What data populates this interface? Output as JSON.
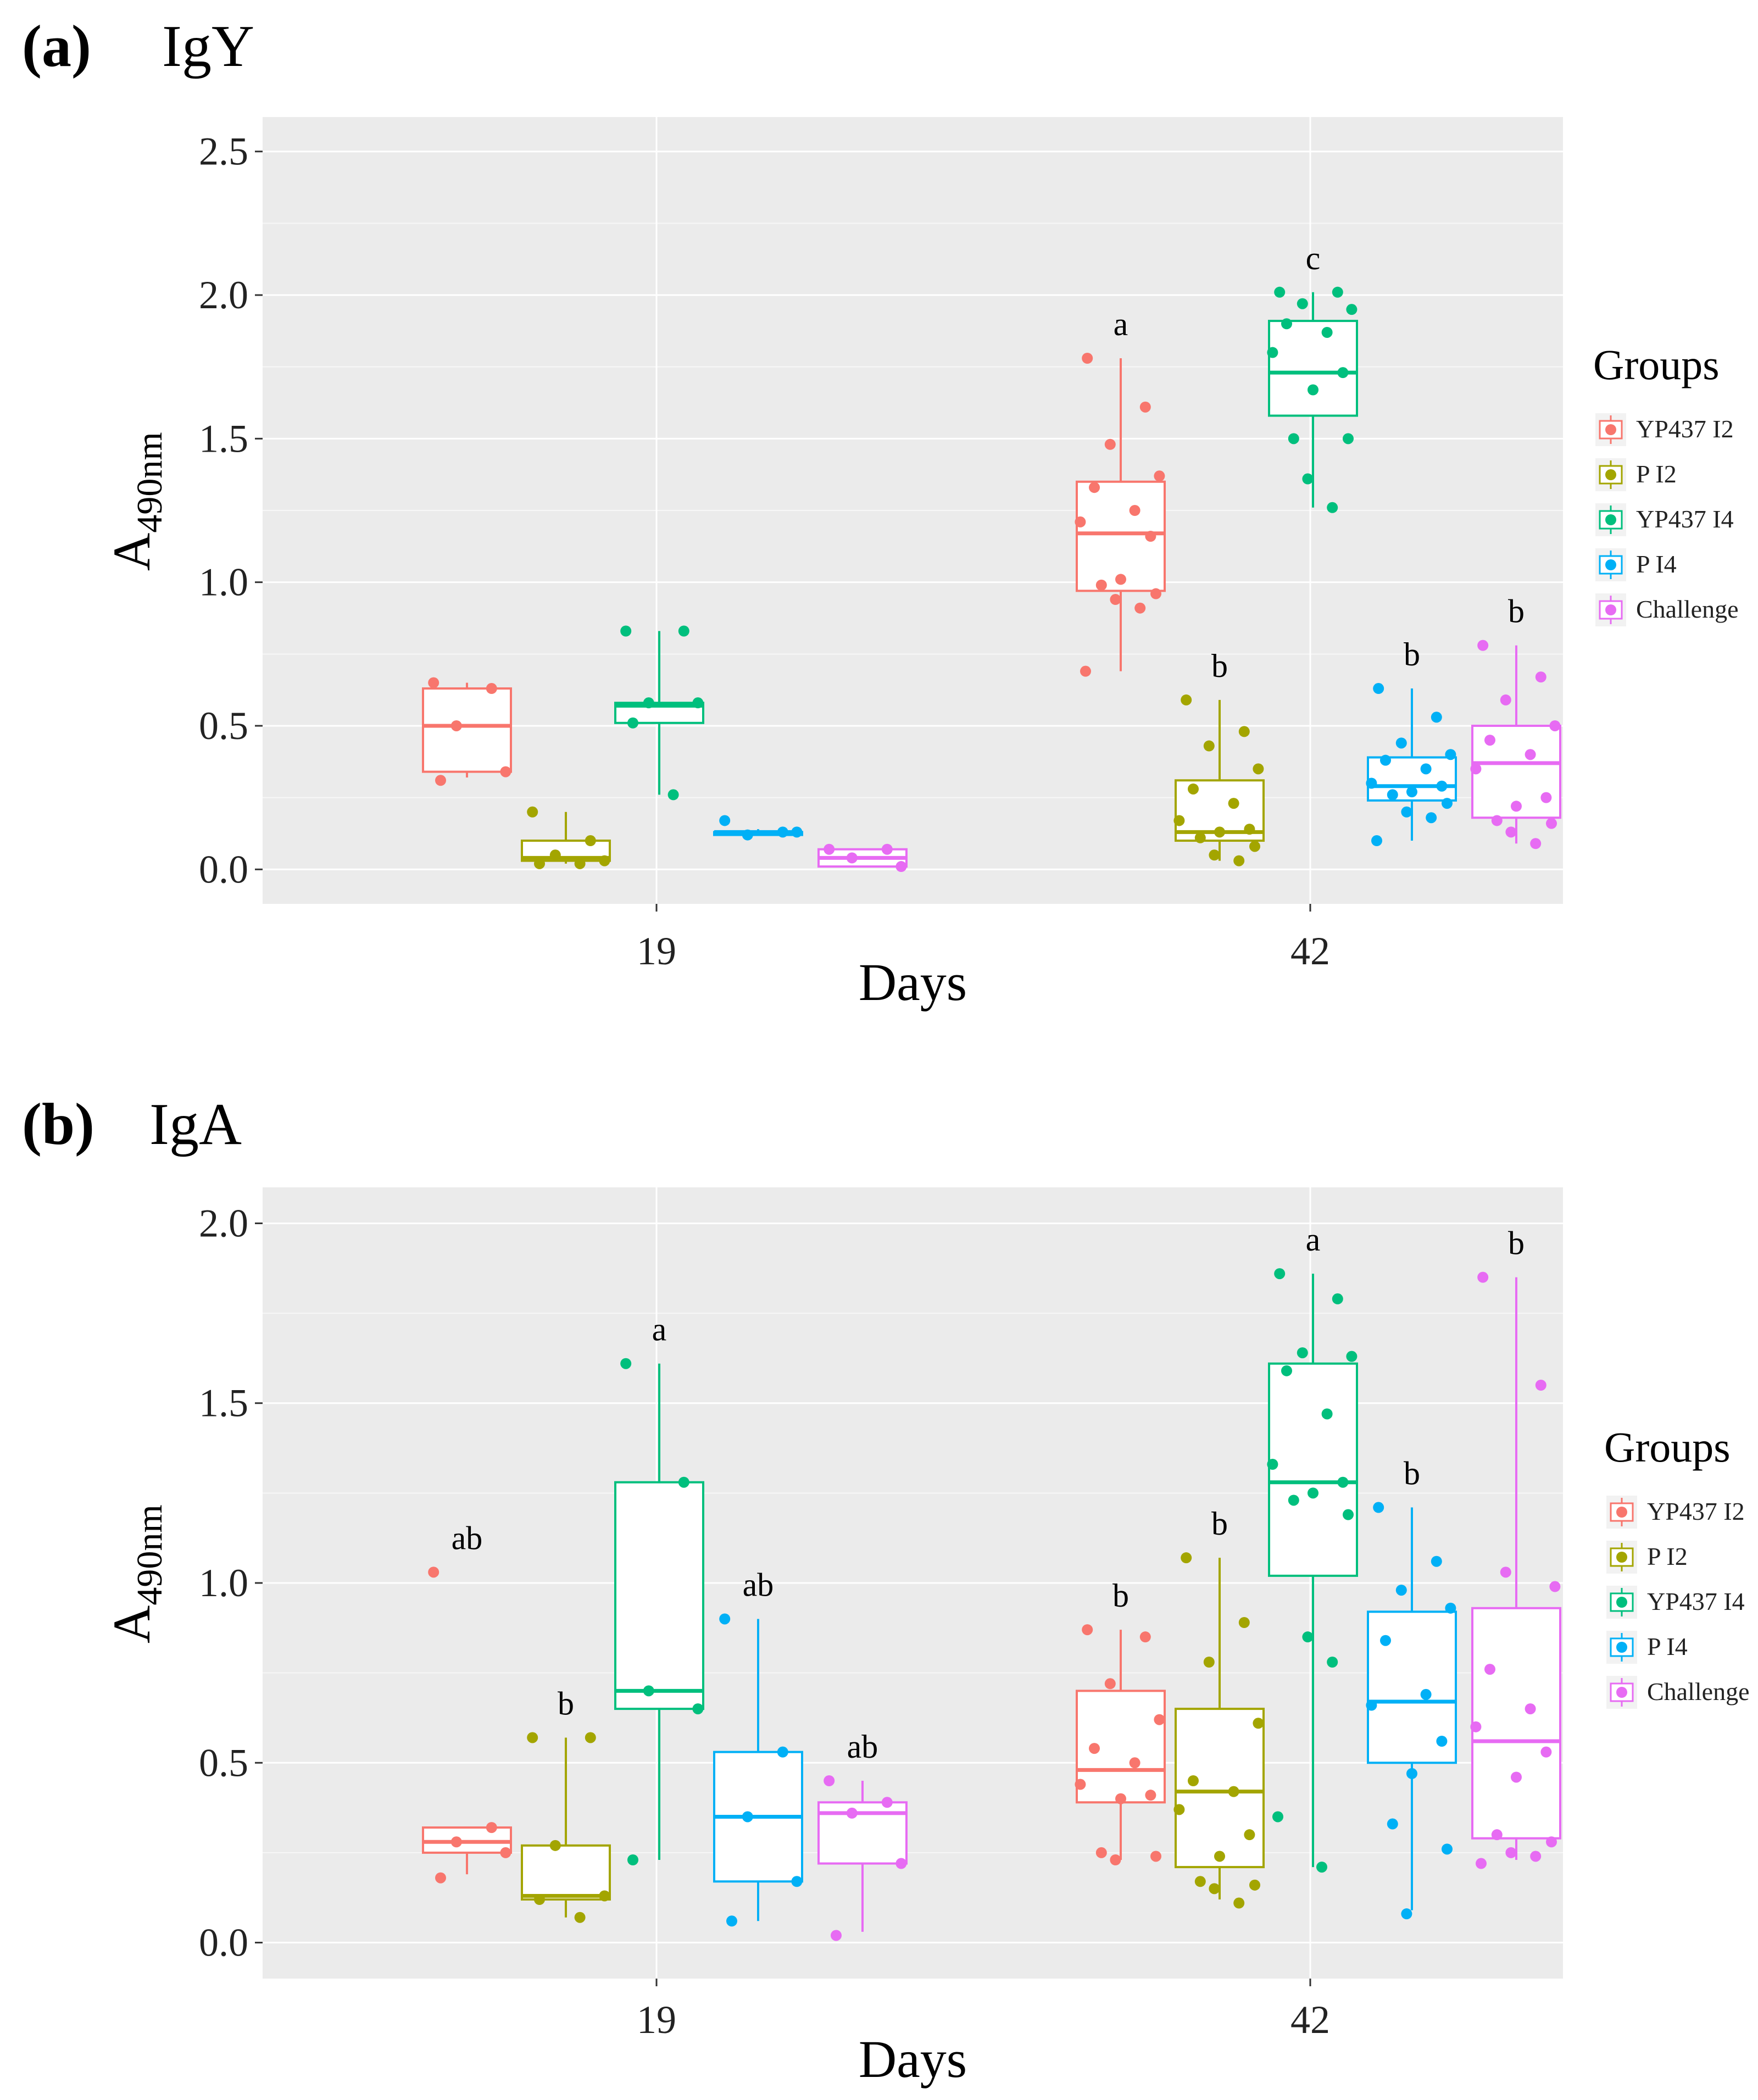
{
  "chart_data": [
    {
      "type": "boxplot",
      "panel_letter": "(a)",
      "title": "IgY",
      "xlabel": "Days",
      "ylabel_main": "A",
      "ylabel_sub": "490nm",
      "ylim": [
        -0.12,
        2.62
      ],
      "yticks": [
        "0.0",
        "0.5",
        "1.0",
        "1.5",
        "2.0",
        "2.5"
      ],
      "categories": [
        "19",
        "42"
      ],
      "legend_title": "Groups",
      "legend_position": "right",
      "groups": [
        {
          "name": "YP437 I2",
          "color": "#F8766D"
        },
        {
          "name": "P I2",
          "color": "#A3A500"
        },
        {
          "name": "YP437 I4",
          "color": "#00BF7D"
        },
        {
          "name": "P I4",
          "color": "#00B0F6"
        },
        {
          "name": "Challenge",
          "color": "#E76BF3"
        }
      ],
      "boxes": [
        {
          "day": "19",
          "group": 0,
          "min": 0.32,
          "q1": 0.34,
          "median": 0.5,
          "q3": 0.63,
          "max": 0.65,
          "letter": "",
          "points": [
            0.65,
            0.63,
            0.5,
            0.34,
            0.31
          ]
        },
        {
          "day": "19",
          "group": 1,
          "min": 0.02,
          "q1": 0.03,
          "median": 0.04,
          "q3": 0.1,
          "max": 0.2,
          "letter": "",
          "points": [
            0.2,
            0.1,
            0.05,
            0.03,
            0.02,
            0.02
          ]
        },
        {
          "day": "19",
          "group": 2,
          "min": 0.26,
          "q1": 0.51,
          "median": 0.57,
          "q3": 0.58,
          "max": 0.83,
          "letter": "",
          "points": [
            0.83,
            0.83,
            0.58,
            0.58,
            0.51,
            0.26
          ]
        },
        {
          "day": "19",
          "group": 3,
          "min": 0.12,
          "q1": 0.12,
          "median": 0.13,
          "q3": 0.13,
          "max": 0.14,
          "letter": "",
          "points": [
            0.17,
            0.13,
            0.12,
            0.13
          ]
        },
        {
          "day": "19",
          "group": 4,
          "min": 0.01,
          "q1": 0.01,
          "median": 0.04,
          "q3": 0.07,
          "max": 0.07,
          "letter": "",
          "points": [
            0.07,
            0.07,
            0.04,
            0.01
          ]
        },
        {
          "day": "42",
          "group": 0,
          "min": 0.69,
          "q1": 0.97,
          "median": 1.17,
          "q3": 1.35,
          "max": 1.78,
          "letter": "a",
          "points": [
            1.78,
            1.61,
            1.48,
            1.37,
            1.33,
            1.25,
            1.21,
            1.16,
            1.01,
            0.99,
            0.96,
            0.94,
            0.91,
            0.69
          ]
        },
        {
          "day": "42",
          "group": 1,
          "min": 0.03,
          "q1": 0.1,
          "median": 0.13,
          "q3": 0.31,
          "max": 0.59,
          "letter": "b",
          "points": [
            0.59,
            0.48,
            0.43,
            0.35,
            0.28,
            0.23,
            0.17,
            0.14,
            0.13,
            0.11,
            0.08,
            0.05,
            0.03
          ]
        },
        {
          "day": "42",
          "group": 2,
          "min": 1.26,
          "q1": 1.58,
          "median": 1.73,
          "q3": 1.91,
          "max": 2.01,
          "letter": "c",
          "points": [
            2.01,
            2.01,
            1.97,
            1.95,
            1.9,
            1.87,
            1.8,
            1.73,
            1.67,
            1.5,
            1.5,
            1.36,
            1.26
          ]
        },
        {
          "day": "42",
          "group": 3,
          "min": 0.1,
          "q1": 0.24,
          "median": 0.29,
          "q3": 0.39,
          "max": 0.63,
          "letter": "b",
          "points": [
            0.63,
            0.53,
            0.44,
            0.4,
            0.38,
            0.35,
            0.3,
            0.29,
            0.27,
            0.26,
            0.23,
            0.2,
            0.18,
            0.1
          ]
        },
        {
          "day": "42",
          "group": 4,
          "min": 0.09,
          "q1": 0.18,
          "median": 0.37,
          "q3": 0.5,
          "max": 0.78,
          "letter": "b",
          "points": [
            0.78,
            0.67,
            0.59,
            0.5,
            0.45,
            0.4,
            0.35,
            0.25,
            0.22,
            0.17,
            0.16,
            0.13,
            0.09
          ]
        }
      ]
    },
    {
      "type": "boxplot",
      "panel_letter": "(b)",
      "title": "IgA",
      "xlabel": "Days",
      "ylabel_main": "A",
      "ylabel_sub": "490nm",
      "ylim": [
        -0.1,
        2.1
      ],
      "yticks": [
        "0.0",
        "0.5",
        "1.0",
        "1.5",
        "2.0"
      ],
      "categories": [
        "19",
        "42"
      ],
      "legend_title": "Groups",
      "legend_position": "right",
      "groups": [
        {
          "name": "YP437 I2",
          "color": "#F8766D"
        },
        {
          "name": "P I2",
          "color": "#A3A500"
        },
        {
          "name": "YP437 I4",
          "color": "#00BF7D"
        },
        {
          "name": "P I4",
          "color": "#00B0F6"
        },
        {
          "name": "Challenge",
          "color": "#E76BF3"
        }
      ],
      "boxes": [
        {
          "day": "19",
          "group": 0,
          "min": 0.19,
          "q1": 0.25,
          "median": 0.28,
          "q3": 0.32,
          "max": 0.32,
          "letter": "ab",
          "points": [
            1.03,
            0.32,
            0.28,
            0.25,
            0.18
          ]
        },
        {
          "day": "19",
          "group": 1,
          "min": 0.07,
          "q1": 0.12,
          "median": 0.13,
          "q3": 0.27,
          "max": 0.57,
          "letter": "b",
          "points": [
            0.57,
            0.57,
            0.27,
            0.13,
            0.12,
            0.07
          ]
        },
        {
          "day": "19",
          "group": 2,
          "min": 0.23,
          "q1": 0.65,
          "median": 0.7,
          "q3": 1.28,
          "max": 1.61,
          "letter": "a",
          "points": [
            1.61,
            1.28,
            0.7,
            0.65,
            0.23
          ]
        },
        {
          "day": "19",
          "group": 3,
          "min": 0.06,
          "q1": 0.17,
          "median": 0.35,
          "q3": 0.53,
          "max": 0.9,
          "letter": "ab",
          "points": [
            0.9,
            0.53,
            0.35,
            0.17,
            0.06
          ]
        },
        {
          "day": "19",
          "group": 4,
          "min": 0.03,
          "q1": 0.22,
          "median": 0.36,
          "q3": 0.39,
          "max": 0.45,
          "letter": "ab",
          "points": [
            0.45,
            0.39,
            0.36,
            0.22,
            0.02
          ]
        },
        {
          "day": "42",
          "group": 0,
          "min": 0.23,
          "q1": 0.39,
          "median": 0.48,
          "q3": 0.7,
          "max": 0.87,
          "letter": "b",
          "points": [
            0.87,
            0.85,
            0.72,
            0.62,
            0.54,
            0.5,
            0.44,
            0.41,
            0.4,
            0.25,
            0.24,
            0.23
          ]
        },
        {
          "day": "42",
          "group": 1,
          "min": 0.12,
          "q1": 0.21,
          "median": 0.42,
          "q3": 0.65,
          "max": 1.07,
          "letter": "b",
          "points": [
            1.07,
            0.89,
            0.78,
            0.61,
            0.45,
            0.42,
            0.37,
            0.3,
            0.24,
            0.17,
            0.16,
            0.15,
            0.11
          ]
        },
        {
          "day": "42",
          "group": 2,
          "min": 0.21,
          "q1": 1.02,
          "median": 1.28,
          "q3": 1.61,
          "max": 1.86,
          "letter": "a",
          "points": [
            1.86,
            1.79,
            1.64,
            1.63,
            1.59,
            1.47,
            1.33,
            1.28,
            1.25,
            1.23,
            1.19,
            0.85,
            0.78,
            0.35,
            0.21
          ]
        },
        {
          "day": "42",
          "group": 3,
          "min": 0.09,
          "q1": 0.5,
          "median": 0.67,
          "q3": 0.92,
          "max": 1.21,
          "letter": "b",
          "points": [
            1.21,
            1.06,
            0.98,
            0.93,
            0.84,
            0.69,
            0.66,
            0.56,
            0.47,
            0.33,
            0.26,
            0.08
          ]
        },
        {
          "day": "42",
          "group": 4,
          "min": 0.23,
          "q1": 0.29,
          "median": 0.56,
          "q3": 0.93,
          "max": 1.85,
          "letter": "b",
          "points": [
            1.85,
            1.55,
            1.03,
            0.99,
            0.76,
            0.65,
            0.6,
            0.53,
            0.46,
            0.3,
            0.28,
            0.25,
            0.24,
            0.22
          ]
        }
      ]
    }
  ]
}
